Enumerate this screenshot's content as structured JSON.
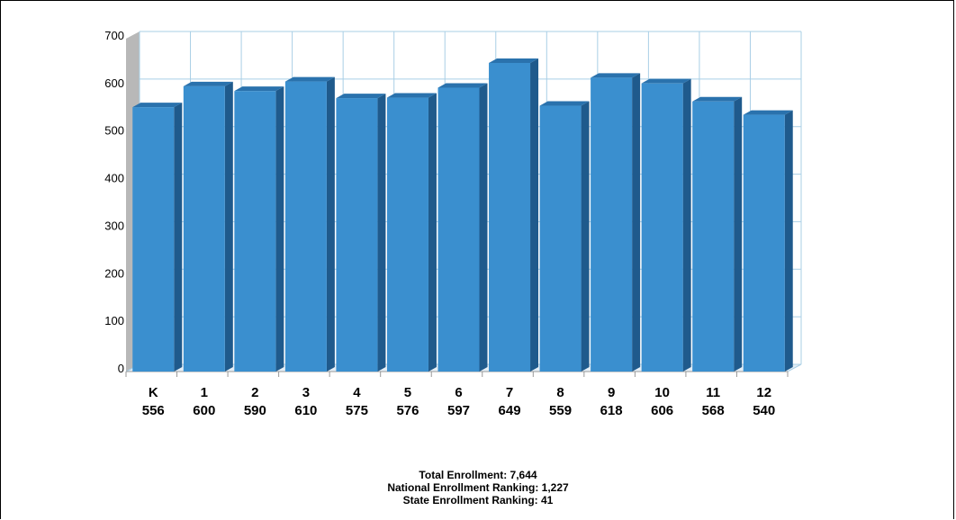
{
  "chart_data": {
    "type": "bar",
    "categories": [
      "K",
      "1",
      "2",
      "3",
      "4",
      "5",
      "6",
      "7",
      "8",
      "9",
      "10",
      "11",
      "12"
    ],
    "values": [
      556,
      600,
      590,
      610,
      575,
      576,
      597,
      649,
      559,
      618,
      606,
      568,
      540
    ],
    "ylim": [
      0,
      700
    ],
    "yticks": [
      0,
      100,
      200,
      300,
      400,
      500,
      600,
      700
    ],
    "grid": true,
    "colors": {
      "bar_front": "#3a8fcf",
      "bar_side": "#1f5a8c",
      "bar_top": "#2a72ad",
      "grid": "#a9cfe6"
    }
  },
  "summary": {
    "total": "Total Enrollment: 7,644",
    "national": "National Enrollment Ranking: 1,227",
    "state": "State Enrollment Ranking: 41"
  }
}
